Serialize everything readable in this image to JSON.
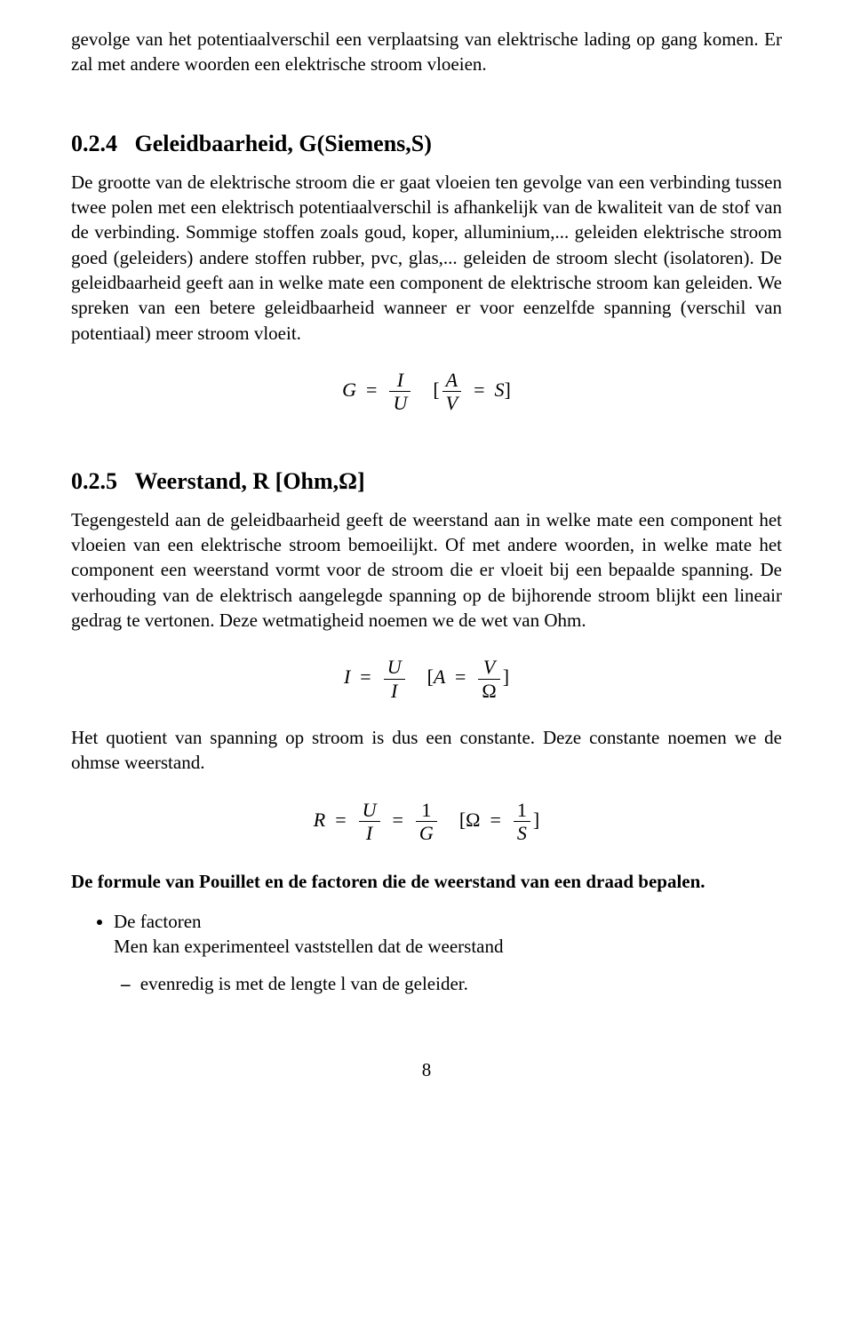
{
  "intro_paragraph": "gevolge van het potentiaalverschil een verplaatsing van elektrische lading op gang komen. Er zal met andere woorden een elektrische stroom vloeien.",
  "section_024": {
    "number": "0.2.4",
    "title": "Geleidbaarheid, G(Siemens,S)",
    "body": "De grootte van de elektrische stroom die er gaat vloeien ten gevolge van een verbinding tussen twee polen met een elektrisch potentiaalverschil is afhankelijk van de kwaliteit van de stof van de verbinding. Sommige stoffen zoals goud, koper, alluminium,... geleiden elektrische stroom goed (geleiders) andere stoffen rubber, pvc, glas,... geleiden de stroom slecht (isolatoren). De geleidbaarheid geeft aan in welke mate een component de elektrische stroom kan geleiden. We spreken van een betere geleidbaarheid wanneer er voor eenzelfde spanning (verschil van potentiaal) meer stroom vloeit."
  },
  "equation_g": {
    "lhs": "G",
    "frac1_num": "I",
    "frac1_den": "U",
    "frac2_num": "A",
    "frac2_den": "V",
    "rhs_unit": "S",
    "eq": "=",
    "lbracket": "[",
    "rbracket": "]"
  },
  "section_025": {
    "number": "0.2.5",
    "title": "Weerstand, R [Ohm,Ω]",
    "body": "Tegengesteld aan de geleidbaarheid geeft de weerstand aan in welke mate een component het vloeien van een elektrische stroom bemoeilijkt. Of met andere woorden, in welke mate het component een weerstand vormt voor de stroom die er vloeit bij een bepaalde spanning. De verhouding van de elektrisch aangelegde spanning op de bijhorende stroom blijkt een lineair gedrag te vertonen. Deze wetmatigheid noemen we de wet van Ohm."
  },
  "equation_i": {
    "lhs": "I",
    "frac1_num": "U",
    "frac1_den": "I",
    "inner_lhs": "A",
    "frac2_num": "V",
    "frac2_den": "Ω",
    "eq": "=",
    "lbracket": "[",
    "rbracket": "]"
  },
  "post_eq_i": "Het quotient van spanning op stroom is dus een constante. Deze constante noemen we de ohmse weerstand.",
  "equation_r": {
    "lhs": "R",
    "frac1_num": "U",
    "frac1_den": "I",
    "frac2_num": "1",
    "frac2_den": "G",
    "inner_lhs": "Ω",
    "frac3_num": "1",
    "frac3_den": "S",
    "eq": "=",
    "lbracket": "[",
    "rbracket": "]"
  },
  "pouillet_heading": "De formule van Pouillet en de factoren die de weerstand van een draad bepalen.",
  "factors": {
    "label": "De factoren",
    "desc": "Men kan experimenteel vaststellen dat de weerstand",
    "item1": "evenredig is met de lengte l van de geleider."
  },
  "page_number": "8"
}
